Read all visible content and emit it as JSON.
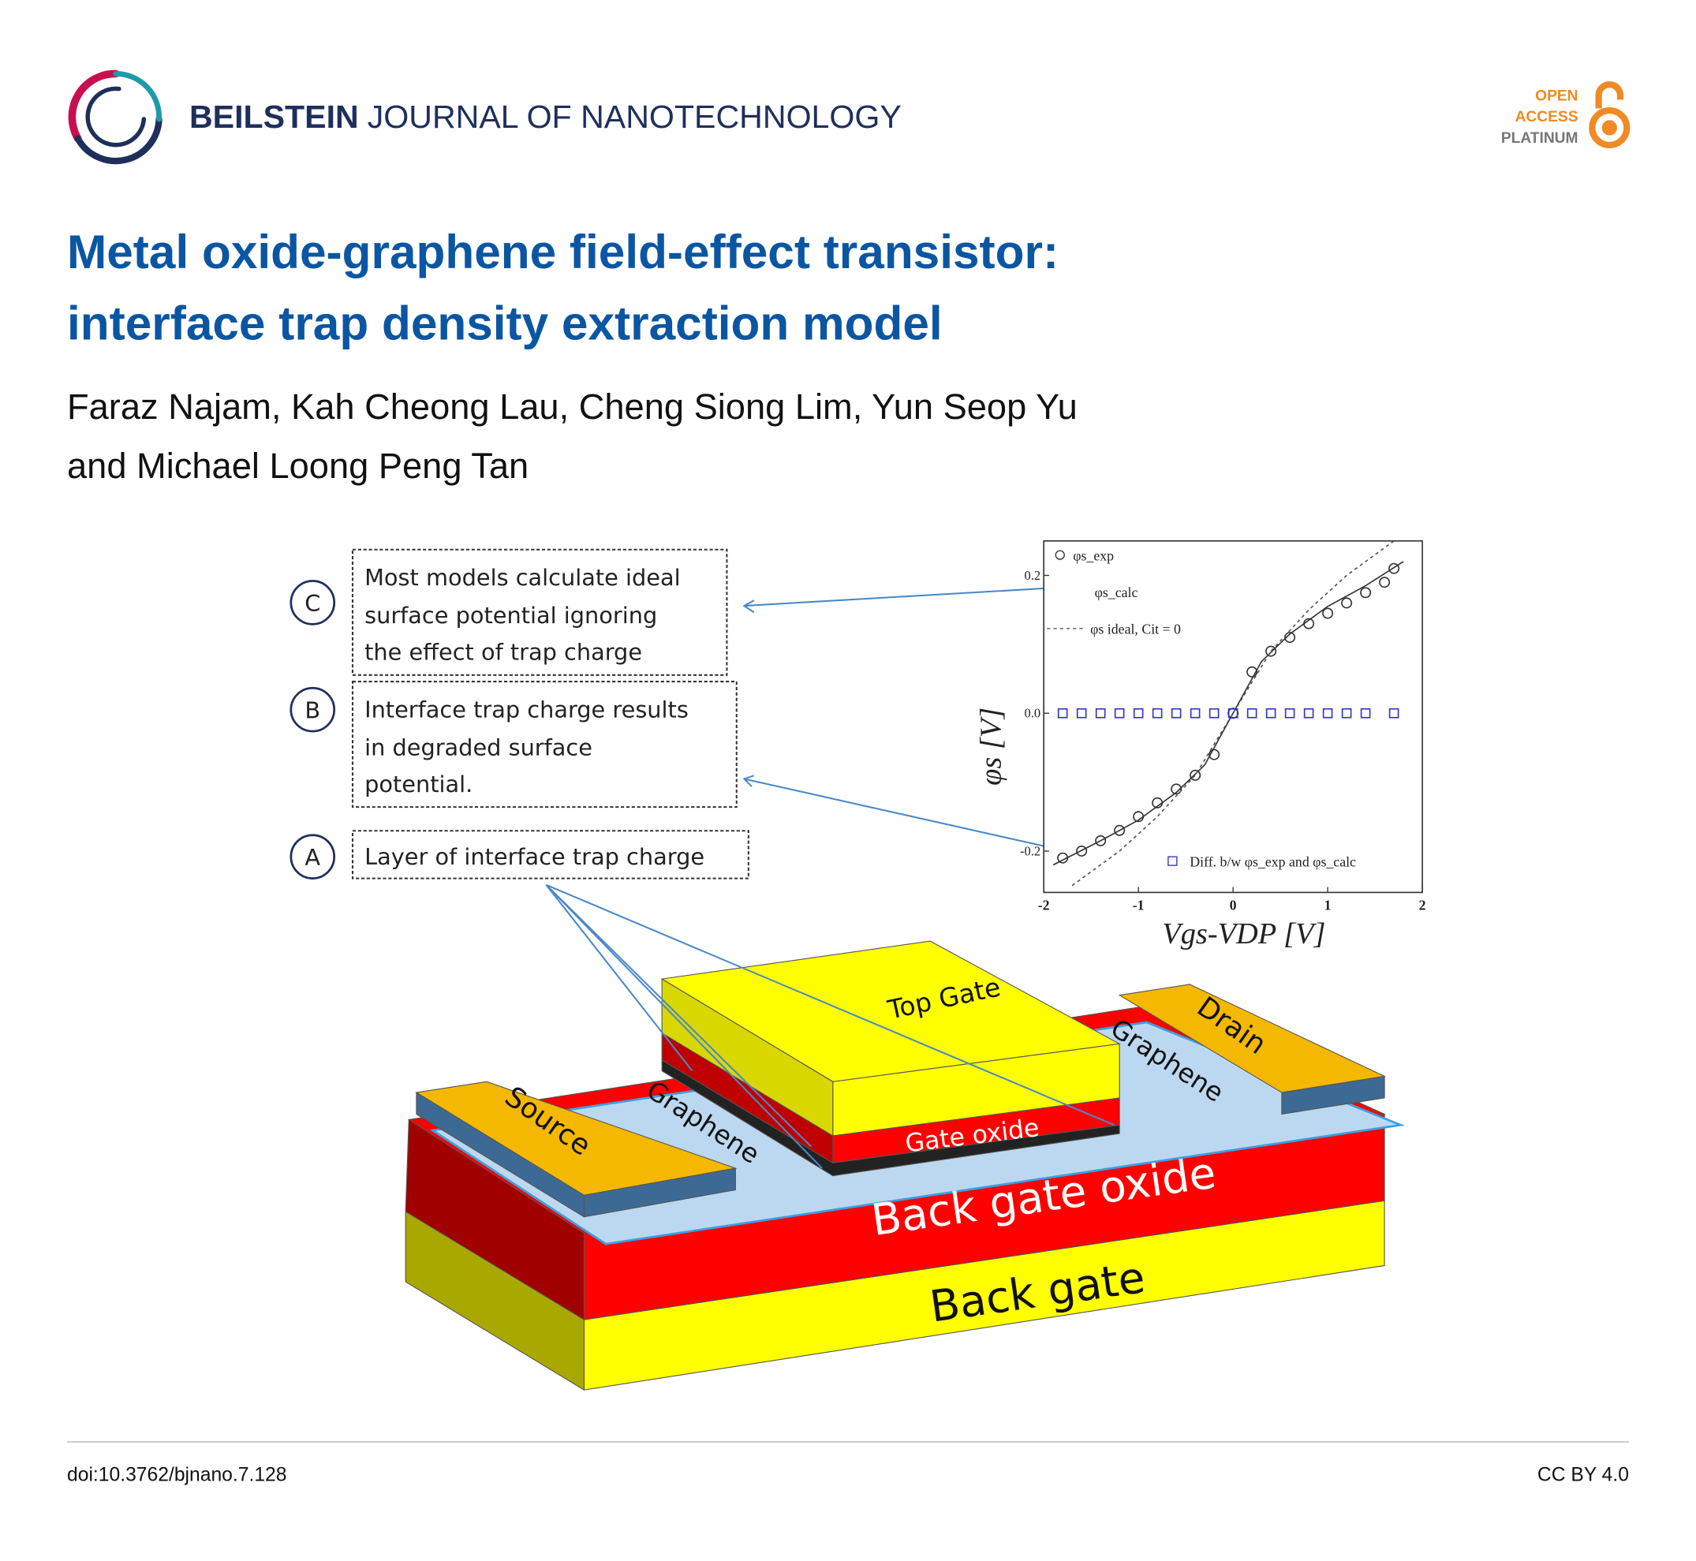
{
  "header": {
    "journal_bold": "BEILSTEIN",
    "journal_rest": "JOURNAL OF NANOTECHNOLOGY",
    "badge": [
      "OPEN",
      "ACCESS",
      "PLATINUM"
    ]
  },
  "title": [
    "Metal oxide-graphene field-effect transistor:",
    "interface trap density extraction model"
  ],
  "authors": [
    "Faraz Najam, Kah Cheong Lau, Cheng Siong Lim, Yun Seop Yu",
    "and Michael Loong Peng Tan"
  ],
  "figure": {
    "callouts": [
      {
        "letter": "C",
        "lines": [
          "Most models calculate ideal",
          "surface potential ignoring",
          "the effect of trap charge"
        ]
      },
      {
        "letter": "B",
        "lines": [
          "Interface trap charge results",
          "in degraded surface",
          "potential."
        ]
      },
      {
        "letter": "A",
        "lines": [
          "Layer of interface trap charge"
        ]
      }
    ],
    "device_labels": {
      "top_gate": "Top Gate",
      "drain": "Drain",
      "source": "Source",
      "graphene_right": "Graphene",
      "graphene_left": "Graphene",
      "gate_oxide": "Gate oxide",
      "back_gate_oxide": "Back gate oxide",
      "back_gate": "Back gate"
    },
    "plot": {
      "type": "line",
      "x_label": "Vgs-VDP [V]",
      "y_label": "φs [V]",
      "xlim": [
        -2,
        2
      ],
      "ylim": [
        -0.26,
        0.25
      ],
      "xticks": [
        -2,
        -1,
        0,
        1,
        2
      ],
      "yticks": [
        0.2,
        {
          "value": 0,
          "label": "0.0"
        },
        -0.2
      ],
      "series": [
        {
          "name": "φs_exp",
          "style": "circle",
          "color": "#333333",
          "x": [
            -1.8,
            -1.6,
            -1.4,
            -1.2,
            -1.0,
            -0.8,
            -0.6,
            -0.4,
            -0.2,
            0,
            0.2,
            0.4,
            0.6,
            0.8,
            1.0,
            1.2,
            1.4,
            1.6,
            1.7
          ],
          "values": [
            -0.21,
            -0.2,
            -0.185,
            -0.17,
            -0.15,
            -0.13,
            -0.11,
            -0.09,
            -0.06,
            0,
            0.06,
            0.09,
            0.11,
            0.13,
            0.145,
            0.16,
            0.175,
            0.19,
            0.21
          ]
        },
        {
          "name": "φs_calc",
          "style": "line",
          "color": "#333333",
          "x": [
            -1.9,
            -1.4,
            -1.0,
            -0.6,
            -0.3,
            0,
            0.3,
            0.6,
            1.0,
            1.4,
            1.8
          ],
          "values": [
            -0.22,
            -0.185,
            -0.155,
            -0.115,
            -0.075,
            0,
            0.075,
            0.115,
            0.155,
            0.185,
            0.22
          ]
        },
        {
          "name": "φs ideal, Cit = 0",
          "style": "dashed",
          "color": "#555555",
          "x": [
            -1.7,
            -1.2,
            -0.8,
            -0.4,
            0,
            0.4,
            0.8,
            1.2,
            1.7
          ],
          "values": [
            -0.25,
            -0.2,
            -0.15,
            -0.09,
            0,
            0.09,
            0.15,
            0.2,
            0.25
          ]
        },
        {
          "name": "Diff. b/w φs_exp and φs_calc",
          "style": "square",
          "color": "#3333cc",
          "x": [
            -1.8,
            -1.6,
            -1.4,
            -1.2,
            -1.0,
            -0.8,
            -0.6,
            -0.4,
            -0.2,
            0,
            0.2,
            0.4,
            0.6,
            0.8,
            1.0,
            1.2,
            1.4,
            1.7
          ],
          "values": [
            0,
            0,
            0,
            0,
            0,
            0,
            0,
            0,
            0,
            0,
            0,
            0,
            0,
            0,
            0,
            0,
            0,
            0
          ]
        }
      ]
    }
  },
  "footer": {
    "doi": "doi:10.3762/bjnano.7.128",
    "license": "CC BY 4.0"
  }
}
